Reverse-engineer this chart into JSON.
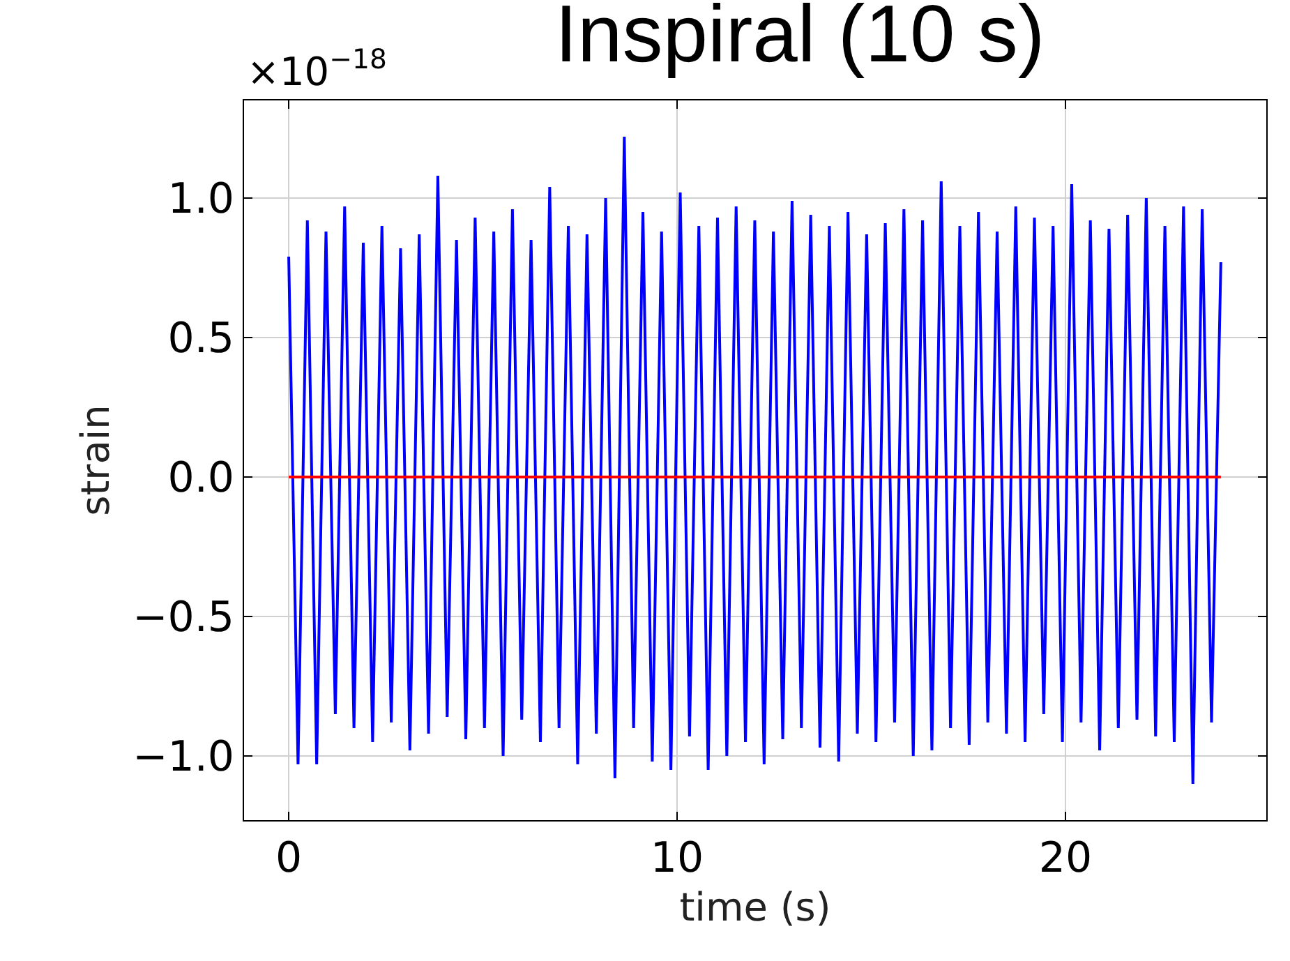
{
  "chart_data": {
    "type": "line",
    "title": "Inspiral (10 s)",
    "xlabel": "time (s)",
    "ylabel": "strain",
    "annotations": [
      "×10$^{−18}$"
    ],
    "xlim": [
      -1.15,
      25.17
    ],
    "xticks": [
      0,
      10,
      20
    ],
    "ylim": [
      -1.23,
      1.35
    ],
    "yticks": [
      {
        "value": -1.0,
        "label": "−1.0"
      },
      {
        "value": -0.5,
        "label": "−0.5"
      },
      {
        "value": 0.0,
        "label": "0.0"
      },
      {
        "value": 0.5,
        "label": "0.5"
      },
      {
        "value": 1.0,
        "label": "1.0"
      }
    ],
    "grid": true,
    "marker": "none",
    "line_style": "solid",
    "series": [
      {
        "color": "#0000ff",
        "x": [
          0,
          0.24,
          0.48,
          0.72,
          0.96,
          1.2,
          1.44,
          1.68,
          1.92,
          2.16,
          2.4,
          2.64,
          2.88,
          3.12,
          3.36,
          3.6,
          3.84,
          4.08,
          4.32,
          4.56,
          4.8,
          5.04,
          5.28,
          5.52,
          5.76,
          6,
          6.24,
          6.48,
          6.72,
          6.96,
          7.2,
          7.44,
          7.68,
          7.92,
          8.16,
          8.4,
          8.64,
          8.88,
          9.12,
          9.36,
          9.6,
          9.84,
          10.08,
          10.32,
          10.56,
          10.8,
          11.04,
          11.28,
          11.52,
          11.76,
          12,
          12.24,
          12.48,
          12.72,
          12.96,
          13.2,
          13.44,
          13.68,
          13.92,
          14.16,
          14.4,
          14.64,
          14.88,
          15.12,
          15.36,
          15.6,
          15.84,
          16.08,
          16.32,
          16.56,
          16.8,
          17.04,
          17.28,
          17.52,
          17.76,
          18,
          18.24,
          18.48,
          18.72,
          18.96,
          19.2,
          19.44,
          19.68,
          19.92,
          20.16,
          20.4,
          20.64,
          20.88,
          21.12,
          21.36,
          21.6,
          21.84,
          22.08,
          22.32,
          22.56,
          22.8,
          23.04,
          23.28,
          23.52,
          23.76,
          24
        ],
        "values": [
          0.79,
          -1.03,
          0.92,
          -1.03,
          0.88,
          -0.85,
          0.97,
          -0.9,
          0.84,
          -0.95,
          0.9,
          -0.88,
          0.82,
          -0.98,
          0.87,
          -0.92,
          1.08,
          -0.86,
          0.85,
          -0.94,
          0.93,
          -0.9,
          0.88,
          -1.0,
          0.96,
          -0.87,
          0.85,
          -0.95,
          1.04,
          -0.9,
          0.9,
          -1.03,
          0.87,
          -0.92,
          1.0,
          -1.08,
          1.22,
          -0.9,
          0.95,
          -1.02,
          0.88,
          -1.05,
          1.02,
          -0.93,
          0.9,
          -1.05,
          0.93,
          -1.0,
          0.97,
          -0.95,
          0.92,
          -1.03,
          0.88,
          -0.94,
          0.99,
          -0.9,
          0.94,
          -0.97,
          0.9,
          -1.02,
          0.95,
          -0.92,
          0.87,
          -0.95,
          0.91,
          -0.88,
          0.96,
          -1.0,
          0.92,
          -0.98,
          1.06,
          -0.9,
          0.9,
          -0.96,
          0.95,
          -0.88,
          0.88,
          -0.92,
          0.97,
          -0.95,
          0.93,
          -0.85,
          0.9,
          -0.95,
          1.05,
          -0.88,
          0.92,
          -0.98,
          0.89,
          -0.9,
          0.94,
          -0.87,
          1.0,
          -0.93,
          0.9,
          -0.95,
          0.97,
          -1.1,
          0.96,
          -0.88,
          0.77
        ]
      },
      {
        "color": "#ff0000",
        "x": [
          0,
          7,
          17,
          24
        ],
        "values": [
          0,
          0,
          0,
          0
        ]
      }
    ]
  }
}
